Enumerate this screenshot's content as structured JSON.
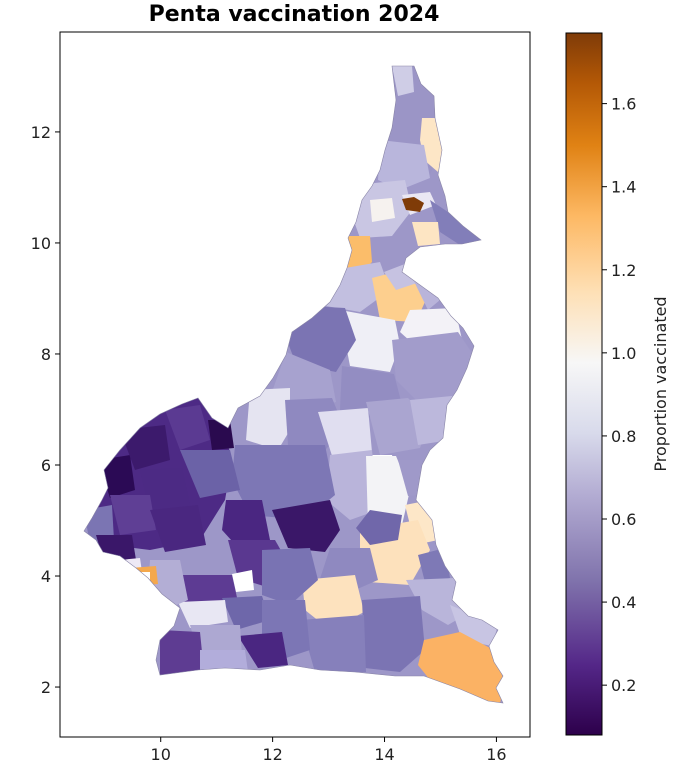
{
  "title": "Penta vaccination 2024",
  "map": {
    "x_ticks": [
      "10",
      "12",
      "14",
      "16"
    ],
    "y_ticks": [
      "2",
      "4",
      "6",
      "8",
      "10",
      "12"
    ],
    "x_tick_values": [
      10,
      12,
      14,
      16
    ],
    "y_tick_values": [
      2,
      4,
      6,
      8,
      10,
      12
    ],
    "xlim": [
      8.2,
      16.6
    ],
    "ylim": [
      1.1,
      13.8
    ]
  },
  "colorbar": {
    "label": "Proportion vaccinated",
    "colormap": "PuOr_r",
    "range": [
      0.08,
      1.77
    ],
    "ticks": [
      "0.2",
      "0.4",
      "0.6",
      "0.8",
      "1.0",
      "1.2",
      "1.4",
      "1.6"
    ],
    "tick_values": [
      0.2,
      0.4,
      0.6,
      0.8,
      1.0,
      1.2,
      1.4,
      1.6
    ],
    "colors": [
      "#2d004b",
      "#542788",
      "#8073ac",
      "#b2abd2",
      "#d8daeb",
      "#f7f7f7",
      "#fee0b6",
      "#fdb863",
      "#e08214",
      "#b35806",
      "#7f3b08"
    ]
  },
  "chart_data": {
    "type": "choropleth",
    "title": "Penta vaccination 2024",
    "xlabel": "",
    "ylabel": "",
    "xlim": [
      8.2,
      16.6
    ],
    "ylim": [
      1.1,
      13.8
    ],
    "value_label": "Proportion vaccinated",
    "value_range": [
      0.08,
      1.77
    ],
    "regions": [
      {
        "lon": 14.6,
        "lat": 10.6,
        "value": 1.75
      },
      {
        "lon": 15.4,
        "lat": 2.2,
        "value": 1.35
      },
      {
        "lon": 13.3,
        "lat": 9.8,
        "value": 1.3
      },
      {
        "lon": 9.7,
        "lat": 3.9,
        "value": 1.3
      },
      {
        "lon": 14.2,
        "lat": 8.9,
        "value": 1.2
      },
      {
        "lon": 14.5,
        "lat": 4.3,
        "value": 1.1
      },
      {
        "lon": 12.6,
        "lat": 3.3,
        "value": 1.1
      },
      {
        "lon": 14.5,
        "lat": 11.8,
        "value": 1.1
      },
      {
        "lon": 14.2,
        "lat": 5.3,
        "value": 0.95
      },
      {
        "lon": 14.6,
        "lat": 8.4,
        "value": 0.9
      },
      {
        "lon": 11.9,
        "lat": 6.8,
        "value": 0.85
      },
      {
        "lon": 13.2,
        "lat": 6.4,
        "value": 0.8
      },
      {
        "lon": 15.2,
        "lat": 3.4,
        "value": 0.6
      },
      {
        "lon": 11.0,
        "lat": 2.8,
        "value": 0.6
      },
      {
        "lon": 12.5,
        "lat": 7.9,
        "value": 0.4
      },
      {
        "lon": 14.2,
        "lat": 7.2,
        "value": 0.55
      },
      {
        "lon": 11.2,
        "lat": 5.2,
        "value": 0.3
      },
      {
        "lon": 12.5,
        "lat": 4.9,
        "value": 0.22
      },
      {
        "lon": 9.5,
        "lat": 5.6,
        "value": 0.18
      },
      {
        "lon": 10.5,
        "lat": 6.2,
        "value": 0.2
      },
      {
        "lon": 9.2,
        "lat": 4.5,
        "value": 0.25
      },
      {
        "lon": 12.0,
        "lat": 2.4,
        "value": 0.3
      },
      {
        "lon": 10.2,
        "lat": 2.4,
        "value": 0.45
      },
      {
        "lon": 13.7,
        "lat": 3.0,
        "value": 0.45
      },
      {
        "lon": 14.8,
        "lat": 10.0,
        "value": 0.45
      },
      {
        "lon": 14.2,
        "lat": 12.6,
        "value": 0.7
      }
    ]
  }
}
